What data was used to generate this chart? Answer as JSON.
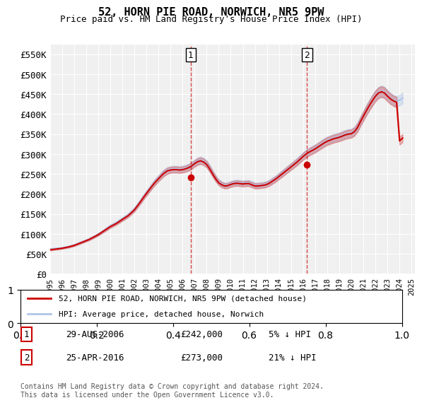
{
  "title": "52, HORN PIE ROAD, NORWICH, NR5 9PW",
  "subtitle": "Price paid vs. HM Land Registry's House Price Index (HPI)",
  "xlabel": "",
  "ylabel": "",
  "ylim": [
    0,
    575000
  ],
  "yticks": [
    0,
    50000,
    100000,
    150000,
    200000,
    250000,
    300000,
    350000,
    400000,
    450000,
    500000,
    550000
  ],
  "ytick_labels": [
    "£0",
    "£50K",
    "£100K",
    "£150K",
    "£200K",
    "£250K",
    "£300K",
    "£350K",
    "£400K",
    "£450K",
    "£500K",
    "£550K"
  ],
  "background_color": "#ffffff",
  "plot_bg_color": "#f0f0f0",
  "grid_color": "#ffffff",
  "hpi_color": "#aec6e8",
  "price_color": "#cc0000",
  "transaction1": {
    "date": "29-AUG-2006",
    "price": 242000,
    "pct": "5%",
    "direction": "↓",
    "label": "1"
  },
  "transaction2": {
    "date": "25-APR-2016",
    "price": 273000,
    "pct": "21%",
    "direction": "↓",
    "label": "2"
  },
  "legend_price_label": "52, HORN PIE ROAD, NORWICH, NR5 9PW (detached house)",
  "legend_hpi_label": "HPI: Average price, detached house, Norwich",
  "footer": "Contains HM Land Registry data © Crown copyright and database right 2024.\nThis data is licensed under the Open Government Licence v3.0.",
  "xtick_years": [
    "1995",
    "1996",
    "1997",
    "1998",
    "1999",
    "2000",
    "2001",
    "2002",
    "2003",
    "2004",
    "2005",
    "2006",
    "2007",
    "2008",
    "2009",
    "2010",
    "2011",
    "2012",
    "2013",
    "2014",
    "2015",
    "2016",
    "2017",
    "2018",
    "2019",
    "2020",
    "2021",
    "2022",
    "2023",
    "2024",
    "2025"
  ],
  "hpi_data": {
    "years": [
      1995.0,
      1995.25,
      1995.5,
      1995.75,
      1996.0,
      1996.25,
      1996.5,
      1996.75,
      1997.0,
      1997.25,
      1997.5,
      1997.75,
      1998.0,
      1998.25,
      1998.5,
      1998.75,
      1999.0,
      1999.25,
      1999.5,
      1999.75,
      2000.0,
      2000.25,
      2000.5,
      2000.75,
      2001.0,
      2001.25,
      2001.5,
      2001.75,
      2002.0,
      2002.25,
      2002.5,
      2002.75,
      2003.0,
      2003.25,
      2003.5,
      2003.75,
      2004.0,
      2004.25,
      2004.5,
      2004.75,
      2005.0,
      2005.25,
      2005.5,
      2005.75,
      2006.0,
      2006.25,
      2006.5,
      2006.75,
      2007.0,
      2007.25,
      2007.5,
      2007.75,
      2008.0,
      2008.25,
      2008.5,
      2008.75,
      2009.0,
      2009.25,
      2009.5,
      2009.75,
      2010.0,
      2010.25,
      2010.5,
      2010.75,
      2011.0,
      2011.25,
      2011.5,
      2011.75,
      2012.0,
      2012.25,
      2012.5,
      2012.75,
      2013.0,
      2013.25,
      2013.5,
      2013.75,
      2014.0,
      2014.25,
      2014.5,
      2014.75,
      2015.0,
      2015.25,
      2015.5,
      2015.75,
      2016.0,
      2016.25,
      2016.5,
      2016.75,
      2017.0,
      2017.25,
      2017.5,
      2017.75,
      2018.0,
      2018.25,
      2018.5,
      2018.75,
      2019.0,
      2019.25,
      2019.5,
      2019.75,
      2020.0,
      2020.25,
      2020.5,
      2020.75,
      2021.0,
      2021.25,
      2021.5,
      2021.75,
      2022.0,
      2022.25,
      2022.5,
      2022.75,
      2023.0,
      2023.25,
      2023.5,
      2023.75,
      2024.0,
      2024.25
    ],
    "values": [
      62000,
      63000,
      63500,
      64000,
      65000,
      66500,
      68000,
      70000,
      72000,
      75000,
      78000,
      81000,
      84000,
      87000,
      91000,
      95000,
      99000,
      104000,
      109000,
      115000,
      120000,
      124000,
      128000,
      133000,
      138000,
      143000,
      148000,
      155000,
      162000,
      172000,
      182000,
      193000,
      203000,
      213000,
      223000,
      232000,
      240000,
      248000,
      255000,
      260000,
      262000,
      263000,
      263000,
      262000,
      263000,
      265000,
      268000,
      272000,
      278000,
      283000,
      285000,
      282000,
      276000,
      265000,
      252000,
      240000,
      230000,
      225000,
      222000,
      223000,
      226000,
      228000,
      229000,
      228000,
      227000,
      228000,
      228000,
      225000,
      222000,
      222000,
      223000,
      224000,
      226000,
      230000,
      235000,
      240000,
      246000,
      252000,
      258000,
      264000,
      270000,
      276000,
      282000,
      289000,
      296000,
      302000,
      307000,
      311000,
      315000,
      320000,
      325000,
      330000,
      334000,
      337000,
      340000,
      342000,
      344000,
      347000,
      350000,
      352000,
      353000,
      358000,
      368000,
      383000,
      397000,
      411000,
      424000,
      436000,
      447000,
      455000,
      458000,
      455000,
      447000,
      440000,
      435000,
      432000,
      435000,
      440000
    ]
  },
  "price_data": {
    "years": [
      1995.0,
      1995.25,
      1995.5,
      1995.75,
      1996.0,
      1996.25,
      1996.5,
      1996.75,
      1997.0,
      1997.25,
      1997.5,
      1997.75,
      1998.0,
      1998.25,
      1998.5,
      1998.75,
      1999.0,
      1999.25,
      1999.5,
      1999.75,
      2000.0,
      2000.25,
      2000.5,
      2000.75,
      2001.0,
      2001.25,
      2001.5,
      2001.75,
      2002.0,
      2002.25,
      2002.5,
      2002.75,
      2003.0,
      2003.25,
      2003.5,
      2003.75,
      2004.0,
      2004.25,
      2004.5,
      2004.75,
      2005.0,
      2005.25,
      2005.5,
      2005.75,
      2006.0,
      2006.25,
      2006.5,
      2006.75,
      2007.0,
      2007.25,
      2007.5,
      2007.75,
      2008.0,
      2008.25,
      2008.5,
      2008.75,
      2009.0,
      2009.25,
      2009.5,
      2009.75,
      2010.0,
      2010.25,
      2010.5,
      2010.75,
      2011.0,
      2011.25,
      2011.5,
      2011.75,
      2012.0,
      2012.25,
      2012.5,
      2012.75,
      2013.0,
      2013.25,
      2013.5,
      2013.75,
      2014.0,
      2014.25,
      2014.5,
      2014.75,
      2015.0,
      2015.25,
      2015.5,
      2015.75,
      2016.0,
      2016.25,
      2016.5,
      2016.75,
      2017.0,
      2017.25,
      2017.5,
      2017.75,
      2018.0,
      2018.25,
      2018.5,
      2018.75,
      2019.0,
      2019.25,
      2019.5,
      2019.75,
      2020.0,
      2020.25,
      2020.5,
      2020.75,
      2021.0,
      2021.25,
      2021.5,
      2021.75,
      2022.0,
      2022.25,
      2022.5,
      2022.75,
      2023.0,
      2023.25,
      2023.5,
      2023.75,
      2024.0,
      2024.25
    ],
    "values": [
      60000,
      61000,
      62000,
      63000,
      64000,
      65500,
      67000,
      69000,
      71000,
      74000,
      77000,
      80000,
      83000,
      86000,
      90000,
      94000,
      98000,
      103000,
      108000,
      113000,
      118000,
      122000,
      126000,
      131000,
      136000,
      141000,
      146000,
      153000,
      160000,
      170000,
      180000,
      191000,
      201000,
      211000,
      221000,
      230000,
      238000,
      246000,
      253000,
      258000,
      260000,
      261000,
      261000,
      260000,
      261000,
      263000,
      266000,
      270000,
      276000,
      281000,
      283000,
      280000,
      274000,
      263000,
      250000,
      238000,
      228000,
      223000,
      220000,
      221000,
      224000,
      226000,
      227000,
      226000,
      225000,
      226000,
      226000,
      223000,
      220000,
      220000,
      221000,
      222000,
      224000,
      228000,
      233000,
      238000,
      244000,
      250000,
      256000,
      262000,
      268000,
      274000,
      280000,
      287000,
      294000,
      300000,
      305000,
      309000,
      313000,
      318000,
      323000,
      328000,
      332000,
      335000,
      338000,
      340000,
      342000,
      345000,
      348000,
      350000,
      351000,
      356000,
      366000,
      381000,
      395000,
      409000,
      422000,
      434000,
      445000,
      453000,
      456000,
      453000,
      445000,
      438000,
      433000,
      430000,
      333000,
      340000
    ]
  }
}
